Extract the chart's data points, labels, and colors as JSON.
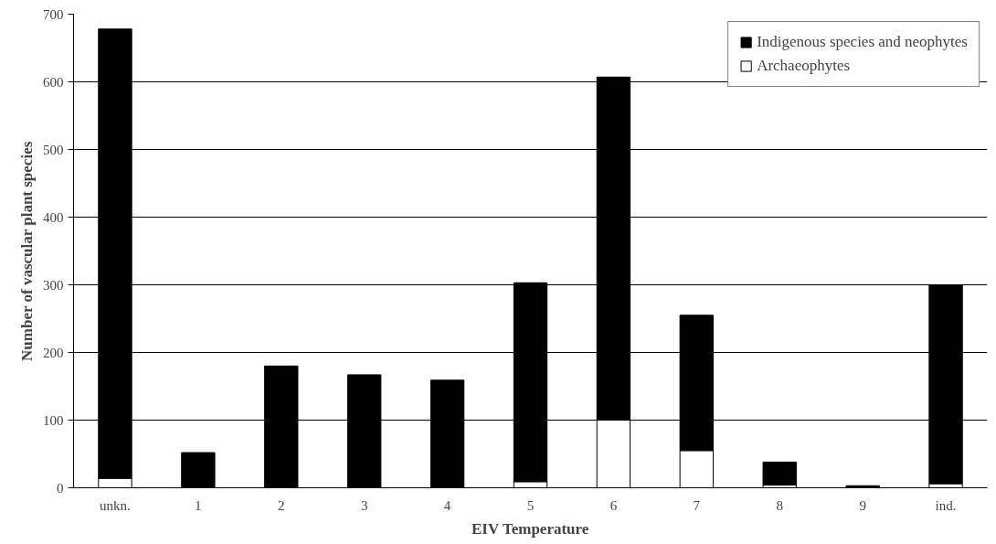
{
  "chart_data": {
    "type": "bar",
    "stacked": true,
    "xlabel": "EIV Temperature",
    "ylabel": "Number of vascular plant species",
    "categories": [
      "unkn.",
      "1",
      "2",
      "3",
      "4",
      "5",
      "6",
      "7",
      "8",
      "9",
      "ind."
    ],
    "series": [
      {
        "name": "Archaeophytes",
        "color": "#ffffff",
        "values": [
          14,
          0,
          0,
          0,
          0,
          9,
          100,
          55,
          4,
          0,
          6
        ]
      },
      {
        "name": "Indigenous species and neophytes",
        "color": "#000000",
        "values": [
          664,
          52,
          180,
          167,
          159,
          294,
          507,
          200,
          34,
          3,
          294
        ]
      }
    ],
    "ylim": [
      0,
      700
    ],
    "yticks": [
      0,
      100,
      200,
      300,
      400,
      500,
      600,
      700
    ],
    "grid": "y",
    "legend": "top right"
  }
}
